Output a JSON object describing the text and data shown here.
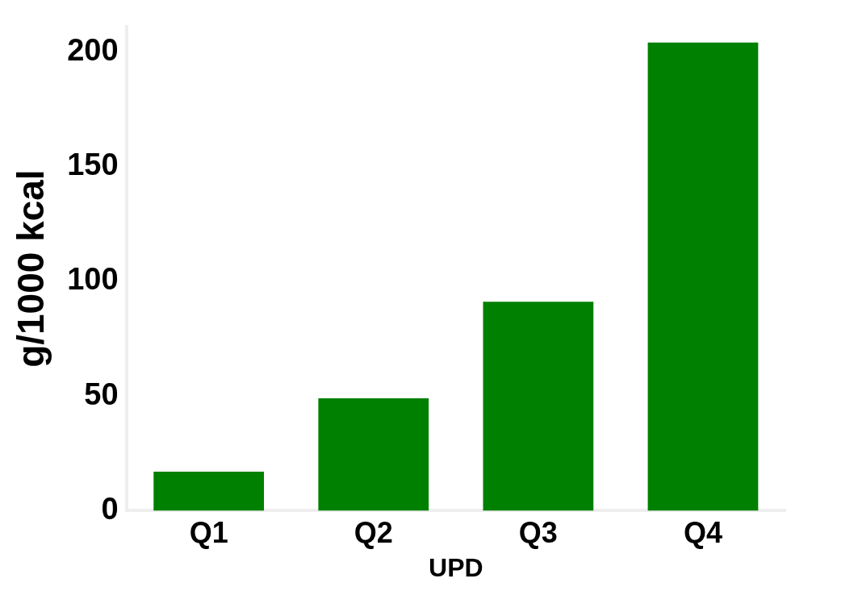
{
  "chart_data": {
    "type": "bar",
    "xlabel": "UPD",
    "ylabel": "g/1000 kcal",
    "categories": [
      "Q1",
      "Q2",
      "Q3",
      "Q4"
    ],
    "values": [
      17,
      49,
      91,
      204
    ],
    "color": "#008000",
    "ylim": [
      0,
      211
    ],
    "yticks": [
      0,
      50,
      100,
      150,
      200
    ],
    "grid": false,
    "legend": false
  }
}
